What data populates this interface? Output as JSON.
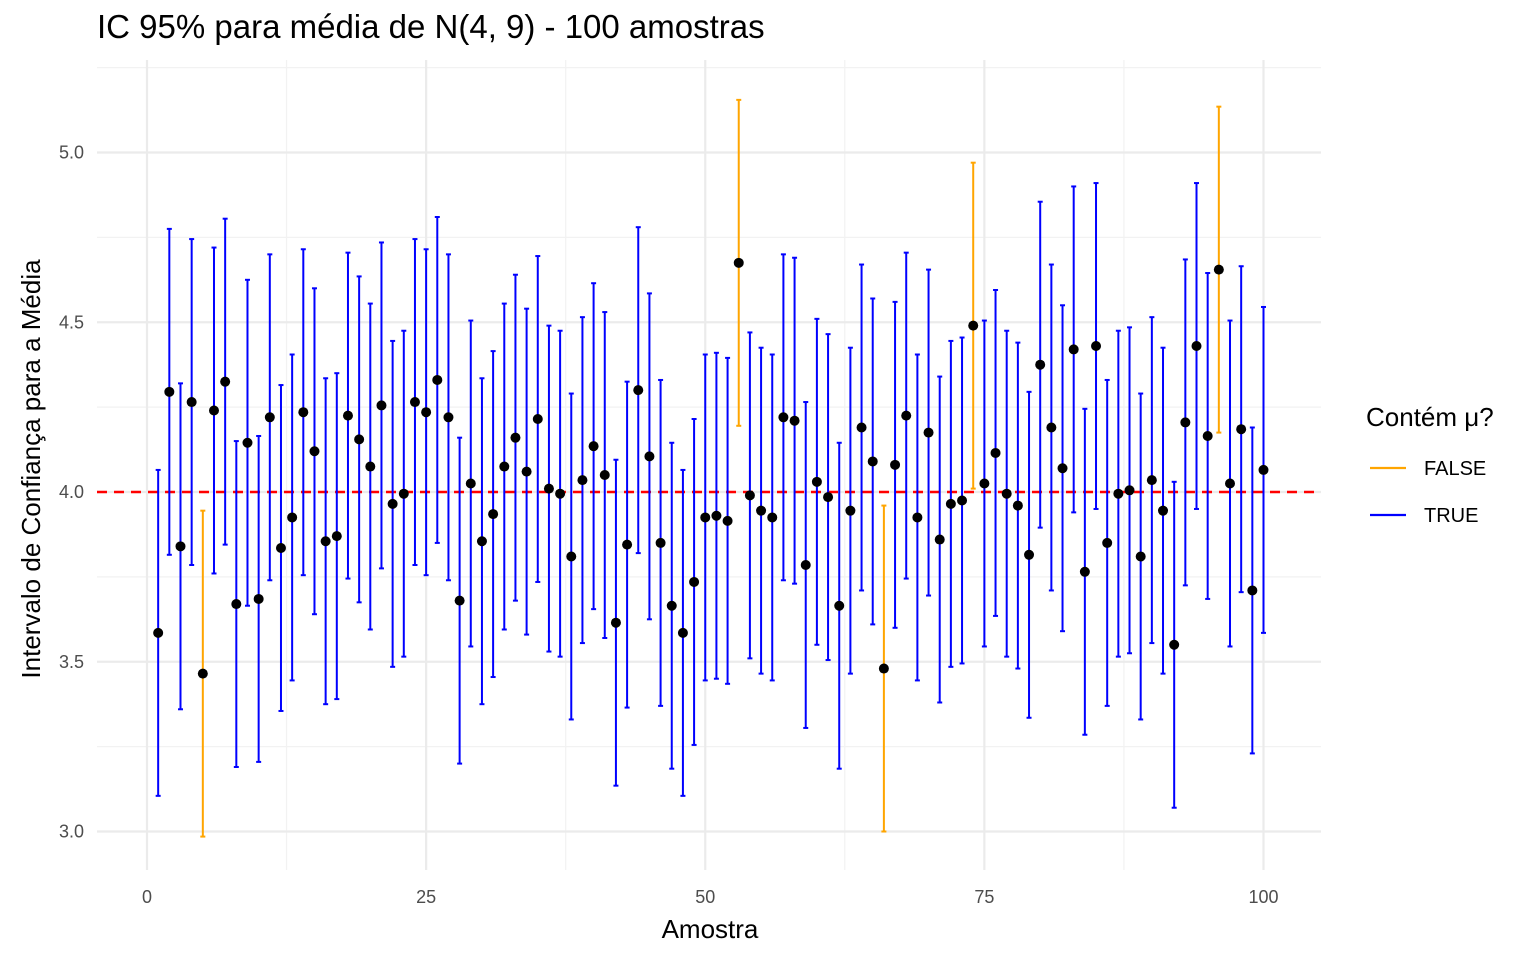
{
  "chart_data": {
    "type": "errorbar",
    "title": "IC 95% para média de N(4, 9) - 100 amostras",
    "xlabel": "Amostra",
    "ylabel": "Intervalo de Confiança para a Média",
    "xlim": [
      -1,
      104
    ],
    "ylim": [
      2.87,
      5.26
    ],
    "x_ticks": [
      0,
      25,
      50,
      75,
      100
    ],
    "x_tick_labels": [
      "0",
      "25",
      "50",
      "75",
      "100"
    ],
    "y_ticks": [
      3.0,
      3.5,
      4.0,
      4.5,
      5.0
    ],
    "y_tick_labels": [
      "3.0",
      "3.5",
      "4.0",
      "4.5",
      "5.0"
    ],
    "grid": true,
    "reference_line": {
      "y": 4.0,
      "color": "#ff0000",
      "style": "dashed"
    },
    "legend": {
      "title": "Contém μ?",
      "position": "right",
      "entries": [
        {
          "label": "FALSE",
          "color": "#ffa500"
        },
        {
          "label": "TRUE",
          "color": "#0000ff"
        }
      ]
    },
    "point_color": "#000000",
    "x": [
      1,
      2,
      3,
      4,
      5,
      6,
      7,
      8,
      9,
      10,
      11,
      12,
      13,
      14,
      15,
      16,
      17,
      18,
      19,
      20,
      21,
      22,
      23,
      24,
      25,
      26,
      27,
      28,
      29,
      30,
      31,
      32,
      33,
      34,
      35,
      36,
      37,
      38,
      39,
      40,
      41,
      42,
      43,
      44,
      45,
      46,
      47,
      48,
      49,
      50,
      51,
      52,
      53,
      54,
      55,
      56,
      57,
      58,
      59,
      60,
      61,
      62,
      63,
      64,
      65,
      66,
      67,
      68,
      69,
      70,
      71,
      72,
      73,
      74,
      75,
      76,
      77,
      78,
      79,
      80,
      81,
      82,
      83,
      84,
      85,
      86,
      87,
      88,
      89,
      90,
      91,
      92,
      93,
      94,
      95,
      96,
      97,
      98,
      99,
      100
    ],
    "mean": [
      3.585,
      4.295,
      3.84,
      4.265,
      3.465,
      4.24,
      4.325,
      3.67,
      4.145,
      3.685,
      4.22,
      3.835,
      3.925,
      4.235,
      4.12,
      3.855,
      3.87,
      4.225,
      4.155,
      4.075,
      4.255,
      3.965,
      3.995,
      4.265,
      4.235,
      4.33,
      4.22,
      3.68,
      4.025,
      3.855,
      3.935,
      4.075,
      4.16,
      4.06,
      4.215,
      4.01,
      3.995,
      3.81,
      4.035,
      4.135,
      4.05,
      3.615,
      3.845,
      4.3,
      4.105,
      3.85,
      3.665,
      3.585,
      3.735,
      3.925,
      3.93,
      3.915,
      4.675,
      3.99,
      3.945,
      3.925,
      4.22,
      4.21,
      3.785,
      4.03,
      3.985,
      3.665,
      3.945,
      4.19,
      4.09,
      3.48,
      4.08,
      4.225,
      3.925,
      4.175,
      3.86,
      3.965,
      3.975,
      4.49,
      4.025,
      4.115,
      3.995,
      3.96,
      3.815,
      4.375,
      4.19,
      4.07,
      4.42,
      3.765,
      4.43,
      3.85,
      3.995,
      4.005,
      3.81,
      4.035,
      3.945,
      3.55,
      4.205,
      4.43,
      4.165,
      4.655,
      4.025,
      4.185,
      3.71,
      4.065
    ],
    "lower": [
      3.105,
      3.815,
      3.36,
      3.785,
      2.985,
      3.76,
      3.845,
      3.19,
      3.665,
      3.205,
      3.74,
      3.355,
      3.445,
      3.755,
      3.64,
      3.375,
      3.39,
      3.745,
      3.675,
      3.595,
      3.775,
      3.485,
      3.515,
      3.785,
      3.755,
      3.85,
      3.74,
      3.2,
      3.545,
      3.375,
      3.455,
      3.595,
      3.68,
      3.58,
      3.735,
      3.53,
      3.515,
      3.33,
      3.555,
      3.655,
      3.57,
      3.135,
      3.365,
      3.82,
      3.625,
      3.37,
      3.185,
      3.105,
      3.255,
      3.445,
      3.45,
      3.435,
      4.195,
      3.51,
      3.465,
      3.445,
      3.74,
      3.73,
      3.305,
      3.55,
      3.505,
      3.185,
      3.465,
      3.71,
      3.61,
      3.0,
      3.6,
      3.745,
      3.445,
      3.695,
      3.38,
      3.485,
      3.495,
      4.01,
      3.545,
      3.635,
      3.515,
      3.48,
      3.335,
      3.895,
      3.71,
      3.59,
      3.94,
      3.285,
      3.95,
      3.37,
      3.515,
      3.525,
      3.33,
      3.555,
      3.465,
      3.07,
      3.725,
      3.95,
      3.685,
      4.175,
      3.545,
      3.705,
      3.23,
      3.585
    ],
    "upper": [
      4.065,
      4.775,
      4.32,
      4.745,
      3.945,
      4.72,
      4.805,
      4.15,
      4.625,
      4.165,
      4.7,
      4.315,
      4.405,
      4.715,
      4.6,
      4.335,
      4.35,
      4.705,
      4.635,
      4.555,
      4.735,
      4.445,
      4.475,
      4.745,
      4.715,
      4.81,
      4.7,
      4.16,
      4.505,
      4.335,
      4.415,
      4.555,
      4.64,
      4.54,
      4.695,
      4.49,
      4.475,
      4.29,
      4.515,
      4.615,
      4.53,
      4.095,
      4.325,
      4.78,
      4.585,
      4.33,
      4.145,
      4.065,
      4.215,
      4.405,
      4.41,
      4.395,
      5.155,
      4.47,
      4.425,
      4.405,
      4.7,
      4.69,
      4.265,
      4.51,
      4.465,
      4.145,
      4.425,
      4.67,
      4.57,
      3.96,
      4.56,
      4.705,
      4.405,
      4.655,
      4.34,
      4.445,
      4.455,
      4.97,
      4.505,
      4.595,
      4.475,
      4.44,
      4.295,
      4.855,
      4.67,
      4.55,
      4.9,
      4.245,
      4.91,
      4.33,
      4.475,
      4.485,
      4.29,
      4.515,
      4.425,
      4.03,
      4.685,
      4.91,
      4.645,
      5.135,
      4.505,
      4.665,
      4.19,
      4.545
    ],
    "contains": [
      true,
      true,
      true,
      true,
      false,
      true,
      true,
      true,
      true,
      true,
      true,
      true,
      true,
      true,
      true,
      true,
      true,
      true,
      true,
      true,
      true,
      true,
      true,
      true,
      true,
      true,
      true,
      true,
      true,
      true,
      true,
      true,
      true,
      true,
      true,
      true,
      true,
      true,
      true,
      true,
      true,
      true,
      true,
      true,
      true,
      true,
      true,
      true,
      true,
      true,
      true,
      true,
      false,
      true,
      true,
      true,
      true,
      true,
      true,
      true,
      true,
      true,
      true,
      true,
      true,
      false,
      true,
      true,
      true,
      true,
      true,
      true,
      true,
      false,
      true,
      true,
      true,
      true,
      true,
      true,
      true,
      true,
      true,
      true,
      true,
      true,
      true,
      true,
      true,
      true,
      true,
      true,
      true,
      true,
      true,
      false,
      true,
      true,
      true,
      true
    ]
  }
}
